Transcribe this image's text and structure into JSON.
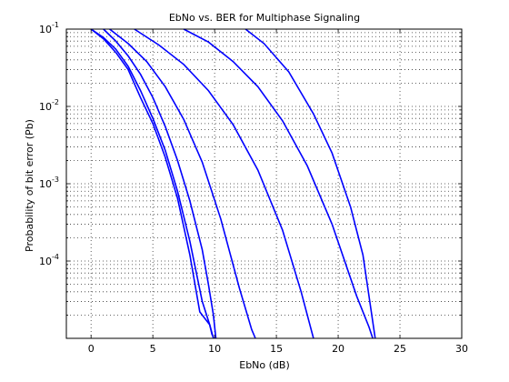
{
  "chart_data": {
    "type": "line",
    "title": "EbNo vs. BER for Multiphase Signaling",
    "xlabel": "EbNo (dB)",
    "ylabel": "Probability of bit error (Pb)",
    "xlim": [
      -2,
      30
    ],
    "ylim": [
      1e-05,
      0.1
    ],
    "yscale": "log",
    "grid": true,
    "line_color": "#0000ff",
    "xticks": [
      0,
      5,
      10,
      15,
      20,
      25,
      30
    ],
    "yticks": [
      {
        "base": "10",
        "exp": "-1",
        "value": 0.1
      },
      {
        "base": "10",
        "exp": "-2",
        "value": 0.01
      },
      {
        "base": "10",
        "exp": "-3",
        "value": 0.001
      },
      {
        "base": "10",
        "exp": "-4",
        "value": 0.0001
      }
    ],
    "series": [
      {
        "x": [
          0.0,
          1.0,
          2.0,
          3.0,
          4.0,
          5.0,
          6.0,
          7.0,
          8.0,
          8.8,
          9.6,
          9.8
        ],
        "y": [
          0.1,
          0.075,
          0.05,
          0.03,
          0.013,
          0.006,
          0.0022,
          0.00065,
          0.00012,
          2.2e-05,
          1.5e-05,
          1.1e-05
        ]
      },
      {
        "x": [
          0.0,
          1.0,
          2.0,
          3.0,
          4.0,
          5.0,
          6.0,
          7.0,
          8.0,
          9.0,
          9.6,
          9.9
        ],
        "y": [
          0.1,
          0.078,
          0.055,
          0.033,
          0.016,
          0.007,
          0.0027,
          0.0008,
          0.00018,
          3e-05,
          1.5e-05,
          1e-05
        ]
      },
      {
        "x": [
          1.0,
          2.0,
          3.0,
          4.0,
          5.0,
          6.0,
          7.0,
          8.0,
          9.0,
          9.5,
          9.9,
          10.1
        ],
        "y": [
          0.1,
          0.07,
          0.045,
          0.026,
          0.013,
          0.0055,
          0.002,
          0.0006,
          0.00014,
          5e-05,
          2e-05,
          1e-05
        ]
      },
      {
        "x": [
          1.5,
          3.0,
          4.5,
          6.0,
          7.5,
          9.0,
          10.5,
          12.0,
          13.0,
          13.3
        ],
        "y": [
          0.1,
          0.065,
          0.038,
          0.018,
          0.0068,
          0.0019,
          0.00035,
          4.5e-05,
          1.3e-05,
          1e-05
        ]
      },
      {
        "x": [
          3.5,
          5.5,
          7.5,
          9.5,
          11.5,
          13.5,
          15.5,
          17.0,
          17.5,
          18.0
        ],
        "y": [
          0.1,
          0.062,
          0.035,
          0.016,
          0.0058,
          0.0015,
          0.00025,
          4e-05,
          2e-05,
          1e-05
        ]
      },
      {
        "x": [
          7.5,
          9.5,
          11.5,
          13.5,
          15.5,
          17.5,
          19.5,
          21.5,
          22.5,
          22.8
        ],
        "y": [
          0.1,
          0.068,
          0.038,
          0.018,
          0.0065,
          0.0017,
          0.0003,
          3.5e-05,
          1.4e-05,
          1e-05
        ]
      },
      {
        "x": [
          12.5,
          14.0,
          16.0,
          18.0,
          19.5,
          21.0,
          22.0,
          23.0
        ],
        "y": [
          0.1,
          0.065,
          0.028,
          0.008,
          0.0025,
          0.0005,
          0.00012,
          1e-05
        ]
      }
    ]
  }
}
